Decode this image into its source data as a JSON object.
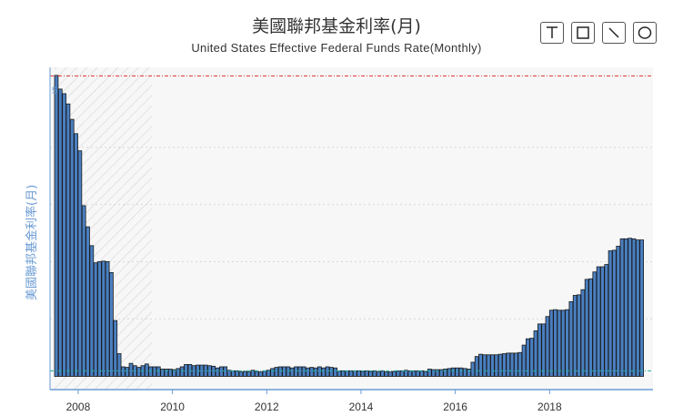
{
  "chart_data": {
    "type": "bar",
    "title": "美國聯邦基金利率(月)",
    "subtitle": "United States Effective Federal Funds Rate(Monthly)",
    "ylabel": "美國聯邦基金利率(月)",
    "xlabel": "",
    "ylim": [
      0,
      5.4
    ],
    "x_tick_labels": [
      "2008",
      "2010",
      "2012",
      "2014",
      "2016",
      "2018"
    ],
    "y_tick_labels": [
      "5"
    ],
    "reference_lines": [
      5.25,
      0.09
    ],
    "grid": true,
    "bar_color": "#4a7fc1",
    "start": "2007-07",
    "values": [
      5.26,
      5.02,
      4.94,
      4.76,
      4.49,
      4.24,
      3.94,
      2.98,
      2.61,
      2.28,
      1.98,
      2.0,
      2.01,
      2.0,
      1.81,
      0.97,
      0.39,
      0.16,
      0.15,
      0.22,
      0.18,
      0.15,
      0.18,
      0.21,
      0.16,
      0.16,
      0.16,
      0.12,
      0.12,
      0.12,
      0.11,
      0.13,
      0.16,
      0.2,
      0.2,
      0.18,
      0.19,
      0.19,
      0.19,
      0.18,
      0.17,
      0.14,
      0.16,
      0.16,
      0.1,
      0.09,
      0.09,
      0.07,
      0.08,
      0.07,
      0.1,
      0.08,
      0.07,
      0.09,
      0.1,
      0.13,
      0.15,
      0.16,
      0.16,
      0.16,
      0.14,
      0.16,
      0.16,
      0.16,
      0.14,
      0.15,
      0.14,
      0.16,
      0.14,
      0.16,
      0.15,
      0.14,
      0.09,
      0.09,
      0.09,
      0.09,
      0.09,
      0.09,
      0.08,
      0.09,
      0.08,
      0.09,
      0.07,
      0.09,
      0.07,
      0.07,
      0.08,
      0.09,
      0.09,
      0.1,
      0.09,
      0.09,
      0.09,
      0.09,
      0.08,
      0.12,
      0.11,
      0.11,
      0.11,
      0.12,
      0.13,
      0.14,
      0.14,
      0.14,
      0.13,
      0.12,
      0.24,
      0.34,
      0.38,
      0.37,
      0.37,
      0.37,
      0.37,
      0.38,
      0.39,
      0.4,
      0.4,
      0.4,
      0.41,
      0.54,
      0.65,
      0.66,
      0.79,
      0.91,
      0.91,
      1.04,
      1.15,
      1.16,
      1.15,
      1.15,
      1.16,
      1.3,
      1.41,
      1.42,
      1.51,
      1.69,
      1.7,
      1.82,
      1.91,
      1.91,
      1.95,
      2.19,
      2.2,
      2.27,
      2.4,
      2.4,
      2.41,
      2.4,
      2.38,
      2.38
    ]
  },
  "toolbar": {
    "buttons": [
      {
        "name": "text-tool-button",
        "icon": "text-cursor-icon"
      },
      {
        "name": "rectangle-tool-button",
        "icon": "rectangle-icon"
      },
      {
        "name": "line-tool-button",
        "icon": "diagonal-line-icon"
      },
      {
        "name": "ellipse-tool-button",
        "icon": "ellipse-icon"
      }
    ]
  },
  "colors": {
    "bar_fill": "#4a7fc1",
    "bar_stroke": "#1a1a1a",
    "upper_ref_line": "#e03030",
    "lower_ref_line": "#20b0a0",
    "axis": "#6a9bd4",
    "axis_text": "#333333"
  }
}
